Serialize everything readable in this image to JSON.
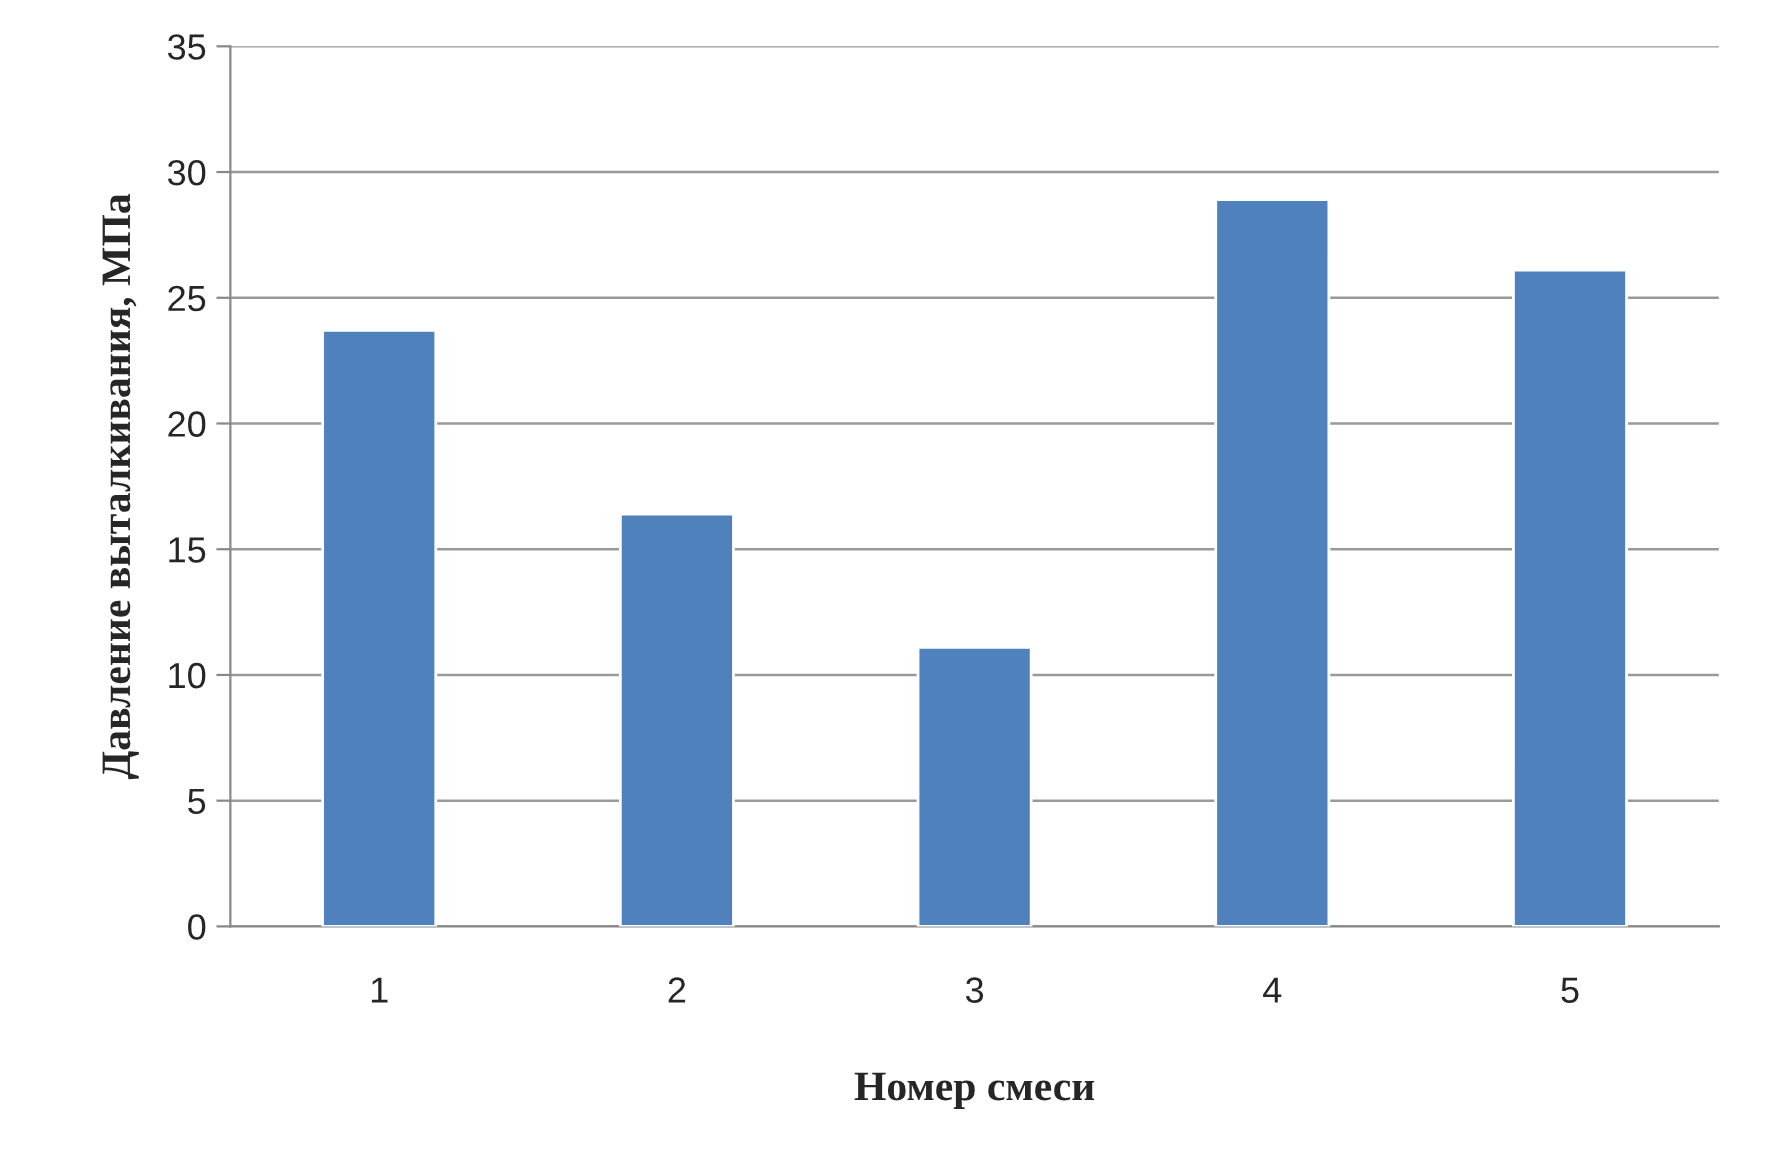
{
  "chart_data": {
    "type": "bar",
    "xlabel": "Номер смеси",
    "ylabel": "Давление выталкивания, МПа",
    "categories": [
      "1",
      "2",
      "3",
      "4",
      "5"
    ],
    "values": [
      23.7,
      16.4,
      11.1,
      28.9,
      26.1
    ],
    "color": "#4f81bd",
    "ylim": [
      0,
      35
    ],
    "yticks": [
      0,
      5,
      10,
      15,
      20,
      25,
      30,
      35
    ],
    "grid": "y"
  }
}
